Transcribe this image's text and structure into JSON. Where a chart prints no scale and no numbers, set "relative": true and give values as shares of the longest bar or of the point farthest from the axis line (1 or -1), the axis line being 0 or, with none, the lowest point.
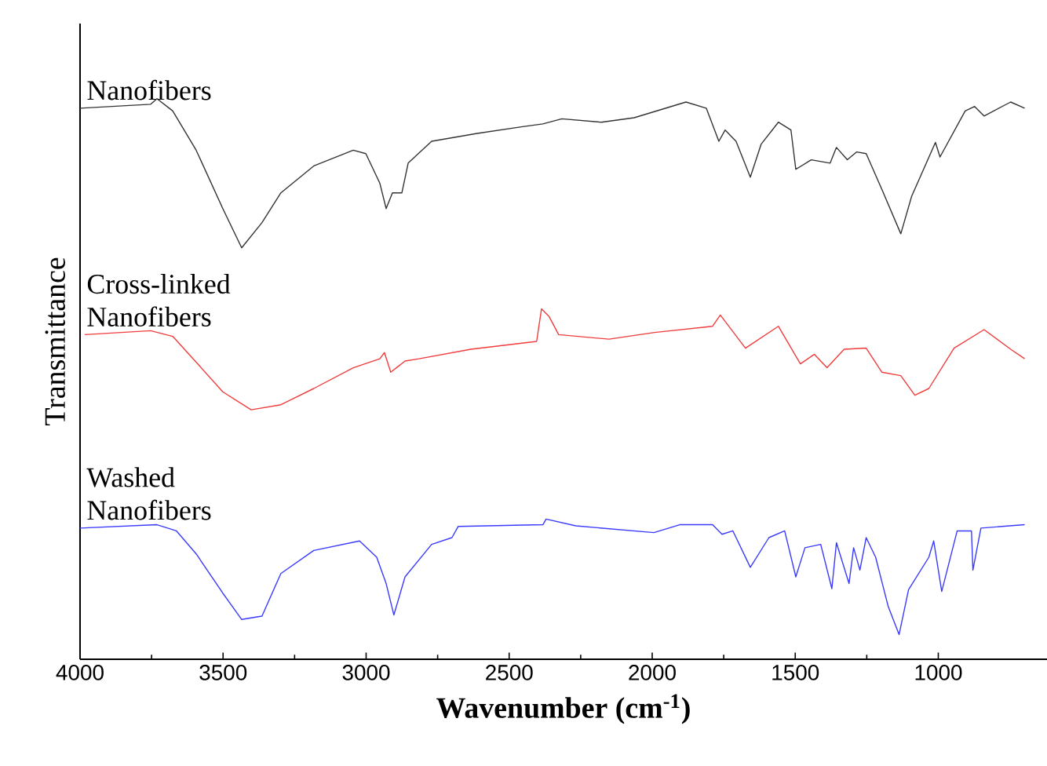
{
  "chart_data": {
    "type": "line",
    "relative": true,
    "xlabel": "Wavenumber (cm$^{-1}$)",
    "ylabel": "Transmittance",
    "xlim": [
      4000,
      620
    ],
    "xticks": [
      4000,
      3500,
      3000,
      2500,
      2000,
      1500,
      1000
    ],
    "legend": false,
    "series": [
      {
        "name": "Nanofibers",
        "color": "#333333",
        "x": [
          4000,
          3753,
          3731,
          3676,
          3594,
          3501,
          3435,
          3364,
          3298,
          3183,
          3045,
          3001,
          2952,
          2930,
          2908,
          2875,
          2853,
          2771,
          2612,
          2453,
          2382,
          2316,
          2178,
          2063,
          1882,
          1811,
          1767,
          1745,
          1707,
          1657,
          1619,
          1559,
          1515,
          1498,
          1444,
          1378,
          1356,
          1318,
          1285,
          1252,
          1197,
          1131,
          1093,
          1010,
          994,
          906,
          873,
          840,
          747,
          698
        ],
        "values": [
          0.983,
          0.99,
          1.0,
          0.978,
          0.908,
          0.804,
          0.734,
          0.779,
          0.832,
          0.88,
          0.908,
          0.902,
          0.849,
          0.804,
          0.832,
          0.832,
          0.885,
          0.924,
          0.938,
          0.95,
          0.955,
          0.964,
          0.958,
          0.966,
          0.994,
          0.983,
          0.924,
          0.944,
          0.924,
          0.86,
          0.919,
          0.958,
          0.944,
          0.874,
          0.891,
          0.885,
          0.913,
          0.891,
          0.905,
          0.902,
          0.838,
          0.759,
          0.826,
          0.922,
          0.896,
          0.978,
          0.986,
          0.969,
          0.994,
          0.983
        ]
      },
      {
        "name": "Cross-linked Nanofibers",
        "color": "#f03c3c",
        "x": [
          3984,
          3753,
          3676,
          3594,
          3501,
          3402,
          3298,
          3183,
          3045,
          2952,
          2936,
          2914,
          2864,
          2815,
          2634,
          2404,
          2387,
          2360,
          2327,
          2151,
          1992,
          1789,
          1762,
          1674,
          1559,
          1482,
          1433,
          1389,
          1329,
          1252,
          1197,
          1131,
          1082,
          1033,
          945,
          840,
          747,
          698
        ],
        "values": [
          0.579,
          0.586,
          0.576,
          0.53,
          0.477,
          0.445,
          0.454,
          0.483,
          0.52,
          0.536,
          0.547,
          0.512,
          0.532,
          0.536,
          0.553,
          0.567,
          0.625,
          0.611,
          0.579,
          0.571,
          0.583,
          0.594,
          0.614,
          0.555,
          0.594,
          0.527,
          0.544,
          0.52,
          0.553,
          0.555,
          0.512,
          0.506,
          0.471,
          0.483,
          0.555,
          0.588,
          0.553,
          0.536
        ]
      },
      {
        "name": "Washed Nanofibers",
        "color": "#3a3aff",
        "x": [
          4000,
          3731,
          3663,
          3594,
          3501,
          3435,
          3364,
          3298,
          3183,
          3023,
          2963,
          2930,
          2903,
          2864,
          2771,
          2700,
          2678,
          2382,
          2371,
          2267,
          1994,
          1904,
          1789,
          1756,
          1718,
          1657,
          1592,
          1537,
          1498,
          1466,
          1411,
          1372,
          1356,
          1312,
          1296,
          1274,
          1252,
          1219,
          1175,
          1137,
          1104,
          1033,
          1016,
          988,
          934,
          884,
          879,
          851,
          698
        ],
        "values": [
          0.234,
          0.24,
          0.229,
          0.188,
          0.118,
          0.071,
          0.077,
          0.153,
          0.194,
          0.211,
          0.182,
          0.135,
          0.079,
          0.147,
          0.205,
          0.217,
          0.237,
          0.24,
          0.25,
          0.238,
          0.226,
          0.24,
          0.24,
          0.223,
          0.229,
          0.164,
          0.217,
          0.229,
          0.147,
          0.199,
          0.205,
          0.126,
          0.208,
          0.135,
          0.199,
          0.159,
          0.217,
          0.182,
          0.094,
          0.044,
          0.124,
          0.182,
          0.211,
          0.121,
          0.229,
          0.229,
          0.159,
          0.234,
          0.24
        ]
      }
    ]
  }
}
